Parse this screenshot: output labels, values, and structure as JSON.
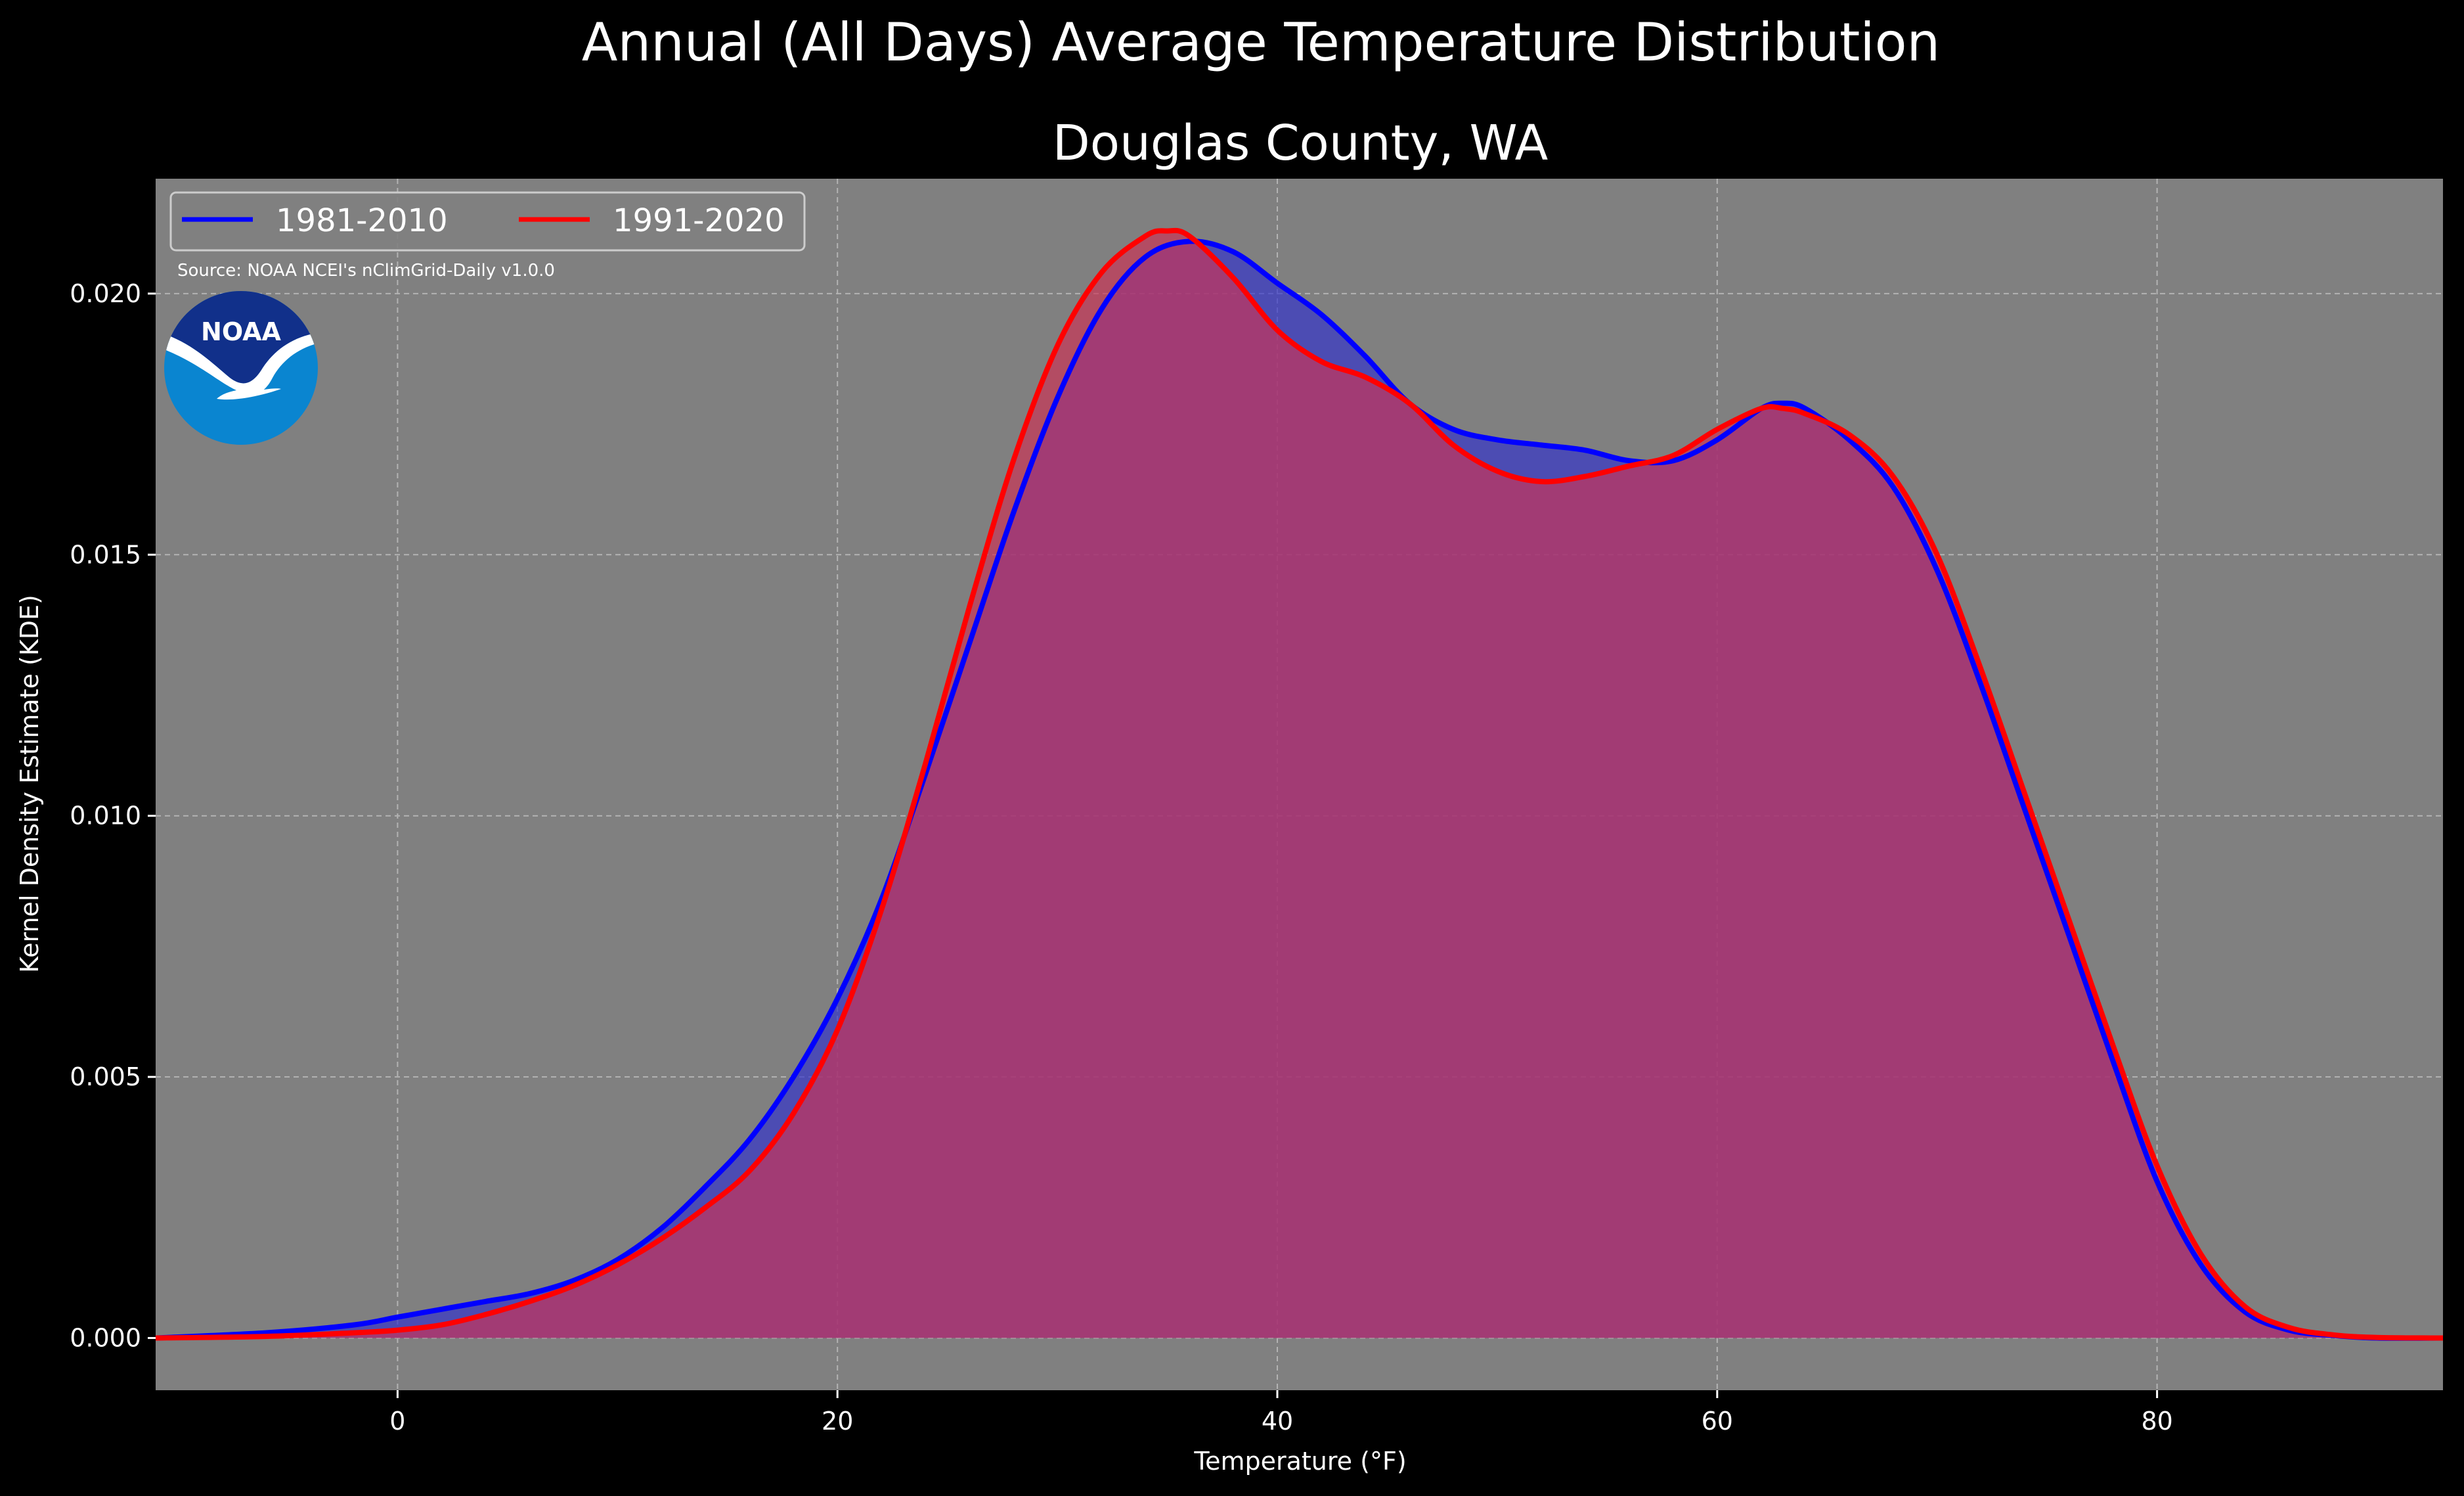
{
  "suptitle": "Annual (All Days) Average Temperature Distribution",
  "chart_data": {
    "type": "area",
    "title": "Douglas County, WA",
    "xlabel": "Temperature (°F)",
    "ylabel": "Kernel Density Estimate (KDE)",
    "xlim": [
      -11,
      93
    ],
    "ylim": [
      -0.001,
      0.0222
    ],
    "xticks": [
      0,
      20,
      40,
      60,
      80
    ],
    "yticks": [
      0.0,
      0.005,
      0.01,
      0.015,
      0.02
    ],
    "xtick_labels": [
      "0",
      "20",
      "40",
      "60",
      "80"
    ],
    "ytick_labels": [
      "0.000",
      "0.005",
      "0.010",
      "0.015",
      "0.020"
    ],
    "grid": true,
    "legend_position": "top-left",
    "source": "Source: NOAA NCEI's nClimGrid-Daily v1.0.0",
    "logo_text": "NOAA",
    "series": [
      {
        "name": "1981-2010",
        "color": "#0000ff",
        "fill": "#3333cc",
        "x": [
          -11,
          -6,
          -2,
          0,
          2,
          4,
          6,
          8,
          10,
          12,
          14,
          16,
          18,
          20,
          22,
          24,
          26,
          28,
          30,
          32,
          34,
          36,
          38,
          40,
          42,
          44,
          46,
          48,
          50,
          52,
          54,
          56,
          58,
          60,
          62,
          63,
          64,
          66,
          68,
          70,
          72,
          74,
          76,
          78,
          80,
          82,
          84,
          86,
          88,
          90,
          93
        ],
        "y": [
          0.0,
          0.0001,
          0.00025,
          0.0004,
          0.00055,
          0.0007,
          0.00085,
          0.0011,
          0.0015,
          0.0021,
          0.0029,
          0.0038,
          0.005,
          0.0065,
          0.0084,
          0.0108,
          0.0133,
          0.0158,
          0.018,
          0.0197,
          0.0207,
          0.021,
          0.0208,
          0.0202,
          0.0196,
          0.0188,
          0.0179,
          0.0174,
          0.0172,
          0.0171,
          0.017,
          0.0168,
          0.0168,
          0.0172,
          0.0178,
          0.0179,
          0.0178,
          0.0172,
          0.0163,
          0.0147,
          0.0125,
          0.0101,
          0.0077,
          0.0053,
          0.003,
          0.0014,
          0.0005,
          0.00015,
          5e-05,
          0.0,
          0.0
        ]
      },
      {
        "name": "1991-2020",
        "color": "#ff0000",
        "fill": "#cc3355",
        "x": [
          -11,
          -6,
          -2,
          0,
          2,
          4,
          6,
          8,
          10,
          12,
          14,
          16,
          18,
          20,
          22,
          24,
          26,
          28,
          30,
          32,
          34,
          35,
          36,
          38,
          40,
          42,
          44,
          46,
          48,
          50,
          52,
          54,
          56,
          58,
          60,
          62,
          63,
          64,
          66,
          68,
          70,
          72,
          74,
          76,
          78,
          80,
          82,
          84,
          86,
          88,
          90,
          93
        ],
        "y": [
          0.0,
          3e-05,
          0.0001,
          0.00015,
          0.00025,
          0.00045,
          0.0007,
          0.001,
          0.0014,
          0.0019,
          0.0025,
          0.0032,
          0.0043,
          0.0059,
          0.0082,
          0.011,
          0.014,
          0.0168,
          0.019,
          0.0204,
          0.0211,
          0.0212,
          0.0211,
          0.0203,
          0.0193,
          0.0187,
          0.0184,
          0.0179,
          0.0171,
          0.0166,
          0.0164,
          0.0165,
          0.0167,
          0.0169,
          0.0174,
          0.0178,
          0.0178,
          0.0177,
          0.0173,
          0.0165,
          0.015,
          0.0128,
          0.0104,
          0.008,
          0.0056,
          0.0033,
          0.0016,
          0.0006,
          0.0002,
          6e-05,
          1e-05,
          0.0
        ]
      }
    ]
  }
}
